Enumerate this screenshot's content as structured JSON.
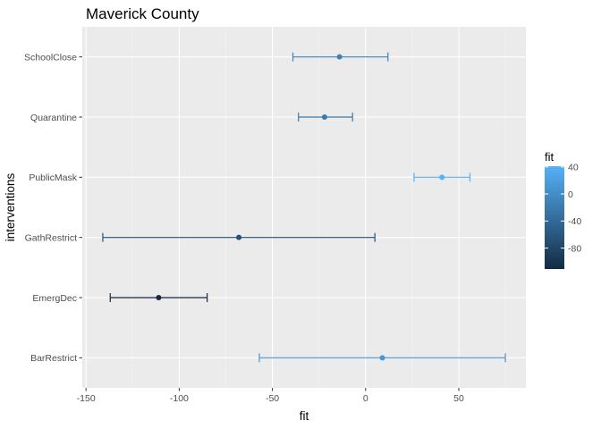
{
  "chart_data": {
    "type": "errorbar",
    "title": "Maverick County",
    "xlabel": "fit",
    "ylabel": "interventions",
    "xlim": [
      -152,
      86
    ],
    "xticks": [
      -150,
      -100,
      -50,
      0,
      50
    ],
    "xtick_labels": [
      "-150",
      "-100",
      "-50",
      "0",
      "50"
    ],
    "categories": [
      "SchoolClose",
      "Quarantine",
      "PublicMask",
      "GathRestrict",
      "EmergDec",
      "BarRestrict"
    ],
    "points": [
      {
        "category": "SchoolClose",
        "fit": -14,
        "lower": -39,
        "upper": 12
      },
      {
        "category": "Quarantine",
        "fit": -22,
        "lower": -36,
        "upper": -7
      },
      {
        "category": "PublicMask",
        "fit": 41,
        "lower": 26,
        "upper": 56
      },
      {
        "category": "GathRestrict",
        "fit": -68,
        "lower": -141,
        "upper": 5
      },
      {
        "category": "EmergDec",
        "fit": -111,
        "lower": -137,
        "upper": -85
      },
      {
        "category": "BarRestrict",
        "fit": 9,
        "lower": -57,
        "upper": 75
      }
    ],
    "grid": true,
    "legend": {
      "title": "fit",
      "position": "right",
      "min": -111,
      "max": 41,
      "ticks": [
        40,
        0,
        -40,
        -80
      ],
      "tick_labels": [
        "40",
        "0",
        "-40",
        "-80"
      ],
      "color_low": "#132b43",
      "color_high": "#56b1f7"
    }
  }
}
